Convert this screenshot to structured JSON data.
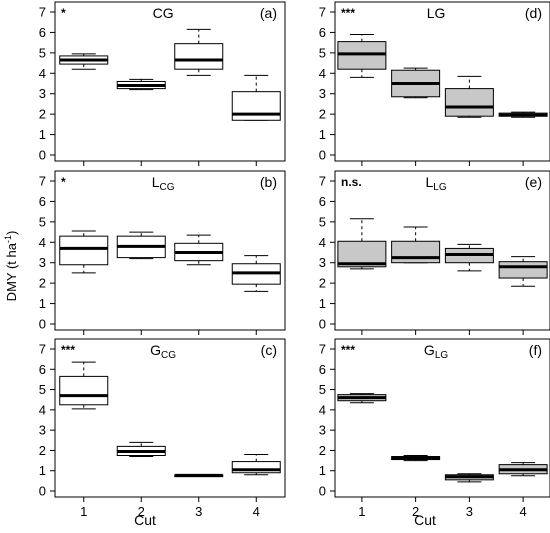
{
  "figure": {
    "ylabel_main": "DMY (t ha",
    "ylabel_sup": "-1",
    "ylabel_close": ")",
    "xlabel": "Cut"
  },
  "chart_data": [
    {
      "type": "boxplot",
      "panel": "a",
      "title_main": "CG",
      "title_sub": "",
      "panel_label": "(a)",
      "significance": "*",
      "fill": "#ffffff",
      "categories": [
        "1",
        "2",
        "3",
        "4"
      ],
      "yticks": [
        "0",
        "1",
        "2",
        "3",
        "4",
        "5",
        "6",
        "7"
      ],
      "ylim": [
        0,
        7
      ],
      "boxes": [
        {
          "whisker_low": 4.2,
          "q1": 4.45,
          "median": 4.65,
          "q3": 4.85,
          "whisker_high": 4.95
        },
        {
          "whisker_low": 3.2,
          "q1": 3.25,
          "median": 3.4,
          "q3": 3.6,
          "whisker_high": 3.7
        },
        {
          "whisker_low": 3.9,
          "q1": 4.2,
          "median": 4.65,
          "q3": 5.45,
          "whisker_high": 6.15
        },
        {
          "whisker_low": 1.7,
          "q1": 1.7,
          "median": 2.0,
          "q3": 3.1,
          "whisker_high": 3.9
        }
      ]
    },
    {
      "type": "boxplot",
      "panel": "d",
      "title_main": "LG",
      "title_sub": "",
      "panel_label": "(d)",
      "significance": "***",
      "fill": "#c8c8c8",
      "categories": [
        "1",
        "2",
        "3",
        "4"
      ],
      "yticks": [
        "0",
        "1",
        "2",
        "3",
        "4",
        "5",
        "6",
        "7"
      ],
      "ylim": [
        0,
        7
      ],
      "boxes": [
        {
          "whisker_low": 3.8,
          "q1": 4.2,
          "median": 4.95,
          "q3": 5.55,
          "whisker_high": 5.9
        },
        {
          "whisker_low": 2.8,
          "q1": 2.85,
          "median": 3.5,
          "q3": 4.15,
          "whisker_high": 4.25
        },
        {
          "whisker_low": 1.85,
          "q1": 1.9,
          "median": 2.35,
          "q3": 3.25,
          "whisker_high": 3.85
        },
        {
          "whisker_low": 1.85,
          "q1": 1.9,
          "median": 1.95,
          "q3": 2.05,
          "whisker_high": 2.1
        }
      ]
    },
    {
      "type": "boxplot",
      "panel": "b",
      "title_main": "L",
      "title_sub": "CG",
      "panel_label": "(b)",
      "significance": "*",
      "fill": "#ffffff",
      "categories": [
        "1",
        "2",
        "3",
        "4"
      ],
      "yticks": [
        "0",
        "1",
        "2",
        "3",
        "4",
        "5",
        "6",
        "7"
      ],
      "ylim": [
        0,
        7
      ],
      "boxes": [
        {
          "whisker_low": 2.5,
          "q1": 2.9,
          "median": 3.7,
          "q3": 4.3,
          "whisker_high": 4.55
        },
        {
          "whisker_low": 3.2,
          "q1": 3.25,
          "median": 3.8,
          "q3": 4.3,
          "whisker_high": 4.5
        },
        {
          "whisker_low": 2.9,
          "q1": 3.1,
          "median": 3.5,
          "q3": 3.95,
          "whisker_high": 4.35
        },
        {
          "whisker_low": 1.6,
          "q1": 1.95,
          "median": 2.5,
          "q3": 2.95,
          "whisker_high": 3.35
        }
      ]
    },
    {
      "type": "boxplot",
      "panel": "e",
      "title_main": "L",
      "title_sub": "LG",
      "panel_label": "(e)",
      "significance": "n.s.",
      "fill": "#c8c8c8",
      "categories": [
        "1",
        "2",
        "3",
        "4"
      ],
      "yticks": [
        "0",
        "1",
        "2",
        "3",
        "4",
        "5",
        "6",
        "7"
      ],
      "ylim": [
        0,
        7
      ],
      "boxes": [
        {
          "whisker_low": 2.7,
          "q1": 2.8,
          "median": 2.95,
          "q3": 4.05,
          "whisker_high": 5.15
        },
        {
          "whisker_low": 3.0,
          "q1": 3.0,
          "median": 3.25,
          "q3": 4.05,
          "whisker_high": 4.75
        },
        {
          "whisker_low": 2.6,
          "q1": 3.0,
          "median": 3.4,
          "q3": 3.7,
          "whisker_high": 3.9
        },
        {
          "whisker_low": 1.85,
          "q1": 2.25,
          "median": 2.8,
          "q3": 3.05,
          "whisker_high": 3.3
        }
      ]
    },
    {
      "type": "boxplot",
      "panel": "c",
      "title_main": "G",
      "title_sub": "CG",
      "panel_label": "(c)",
      "significance": "***",
      "fill": "#ffffff",
      "categories": [
        "1",
        "2",
        "3",
        "4"
      ],
      "yticks": [
        "0",
        "1",
        "2",
        "3",
        "4",
        "5",
        "6",
        "7"
      ],
      "ylim": [
        0,
        7
      ],
      "boxes": [
        {
          "whisker_low": 4.05,
          "q1": 4.25,
          "median": 4.7,
          "q3": 5.65,
          "whisker_high": 6.35
        },
        {
          "whisker_low": 1.7,
          "q1": 1.75,
          "median": 1.95,
          "q3": 2.2,
          "whisker_high": 2.4
        },
        {
          "whisker_low": 0.75,
          "q1": 0.75,
          "median": 0.77,
          "q3": 0.78,
          "whisker_high": 0.8
        },
        {
          "whisker_low": 0.8,
          "q1": 0.9,
          "median": 1.05,
          "q3": 1.45,
          "whisker_high": 1.8
        }
      ]
    },
    {
      "type": "boxplot",
      "panel": "f",
      "title_main": "G",
      "title_sub": "LG",
      "panel_label": "(f)",
      "significance": "***",
      "fill": "#c8c8c8",
      "categories": [
        "1",
        "2",
        "3",
        "4"
      ],
      "yticks": [
        "0",
        "1",
        "2",
        "3",
        "4",
        "5",
        "6",
        "7"
      ],
      "ylim": [
        0,
        7
      ],
      "boxes": [
        {
          "whisker_low": 4.35,
          "q1": 4.45,
          "median": 4.6,
          "q3": 4.75,
          "whisker_high": 4.8
        },
        {
          "whisker_low": 1.5,
          "q1": 1.55,
          "median": 1.6,
          "q3": 1.7,
          "whisker_high": 1.75
        },
        {
          "whisker_low": 0.45,
          "q1": 0.55,
          "median": 0.7,
          "q3": 0.8,
          "whisker_high": 0.85
        },
        {
          "whisker_low": 0.75,
          "q1": 0.85,
          "median": 1.05,
          "q3": 1.3,
          "whisker_high": 1.4
        }
      ]
    }
  ]
}
